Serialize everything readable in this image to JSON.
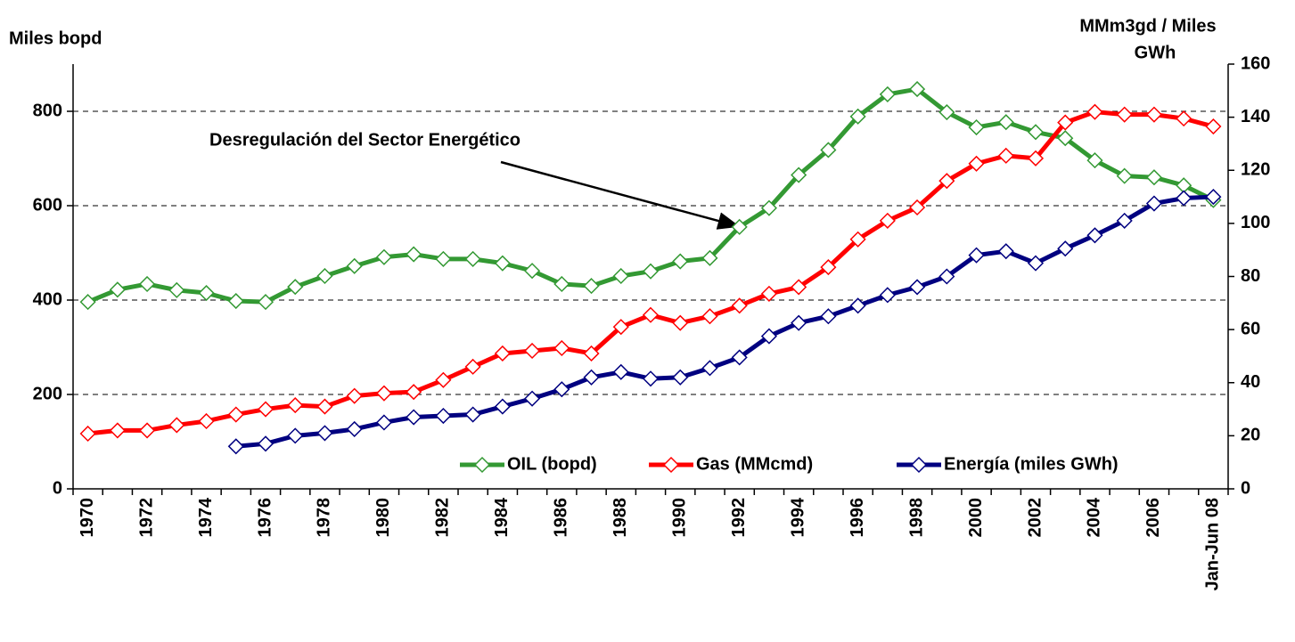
{
  "chart_data": {
    "type": "line",
    "annotation": "Desregulación del Sector Energético",
    "ylabel": "Miles bopd",
    "y2label": [
      "MMm3gd / Miles",
      "GWh"
    ],
    "categories": [
      "1970",
      null,
      "1972",
      null,
      "1974",
      null,
      "1976",
      null,
      "1978",
      null,
      "1980",
      null,
      "1982",
      null,
      "1984",
      null,
      "1986",
      null,
      "1988",
      null,
      "1990",
      null,
      "1992",
      null,
      "1994",
      null,
      "1996",
      null,
      "1998",
      null,
      "2000",
      null,
      "2002",
      null,
      "2004",
      null,
      "2006",
      null,
      "Jan-Jun 08"
    ],
    "series": [
      {
        "name": "OIL (bopd)",
        "color": "#339933",
        "axis": "y",
        "values": [
          396,
          422,
          434,
          421,
          415,
          398,
          396,
          428,
          451,
          472,
          491,
          497,
          487,
          487,
          478,
          462,
          434,
          430,
          451,
          461,
          482,
          489,
          555,
          595,
          665,
          718,
          789,
          836,
          847,
          798,
          766,
          777,
          756,
          743,
          696,
          663,
          660,
          643,
          612
        ]
      },
      {
        "name": "Gas (MMcmd)",
        "color": "#ff0000",
        "axis": "y2",
        "values": [
          20.8,
          22,
          22,
          24,
          25.5,
          28,
          30,
          31.5,
          31,
          35,
          36,
          36.5,
          41,
          46,
          51,
          52,
          53,
          51,
          61,
          65.5,
          62.5,
          65,
          69,
          73.5,
          76,
          83.5,
          94,
          101,
          106,
          116,
          122.5,
          125.5,
          124.5,
          138,
          142,
          141,
          141,
          139.5,
          136.5
        ]
      },
      {
        "name": "Energía (miles GWh)",
        "color": "#000080",
        "axis": "y2",
        "values": [
          null,
          null,
          null,
          null,
          null,
          16,
          17,
          20,
          21,
          22.5,
          25,
          27,
          27.5,
          28,
          31,
          34,
          37.5,
          42,
          44,
          41.5,
          42,
          45.5,
          49.5,
          57.5,
          62.5,
          65,
          69,
          73,
          76,
          80,
          88,
          89.5,
          85,
          90.5,
          95.5,
          101,
          107.5,
          109.5,
          110
        ]
      }
    ],
    "ylim": [
      0,
      900
    ],
    "yticks": [
      0,
      200,
      400,
      600,
      800
    ],
    "y2lim": [
      0,
      160
    ],
    "y2ticks": [
      0,
      20,
      40,
      60,
      80,
      100,
      120,
      140,
      160
    ],
    "grid": true,
    "legend": "lower right"
  }
}
